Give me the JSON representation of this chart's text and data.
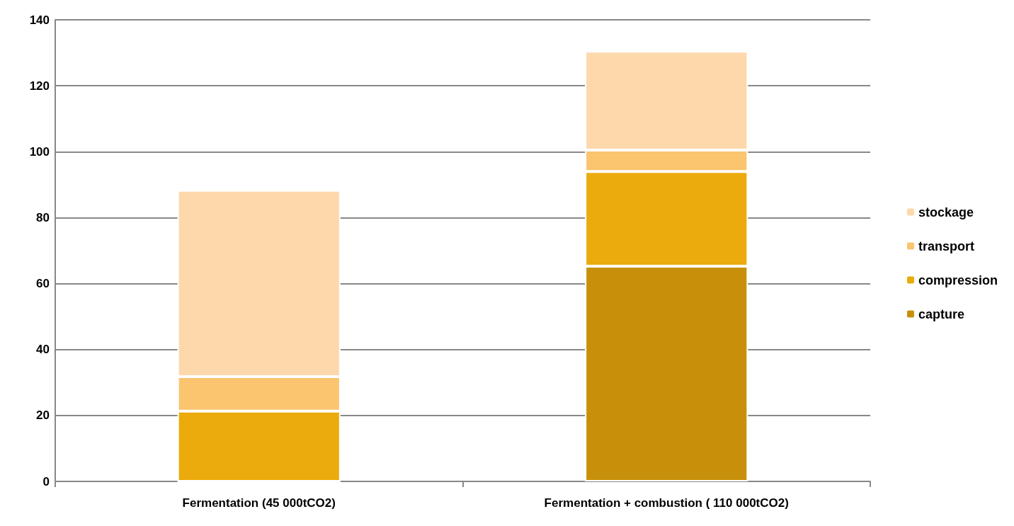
{
  "chart_data": {
    "type": "bar",
    "stacked": true,
    "categories": [
      "Fermentation (45 000tCO2)",
      "Fermentation + combustion ( 110 000tCO2)"
    ],
    "series": [
      {
        "name": "capture",
        "color": "#c8900a",
        "values": [
          0,
          65.3
        ]
      },
      {
        "name": "compression",
        "color": "#ecab0c",
        "values": [
          21.3,
          28.7
        ]
      },
      {
        "name": "transport",
        "color": "#fbc46e",
        "values": [
          10.5,
          6.5
        ]
      },
      {
        "name": "stockage",
        "color": "#fdd8ab",
        "values": [
          56.5,
          30
        ]
      }
    ],
    "ylim": [
      0,
      140
    ],
    "yticks": [
      0,
      20,
      40,
      60,
      80,
      100,
      120,
      140
    ],
    "grid": "y",
    "legend": "right"
  }
}
